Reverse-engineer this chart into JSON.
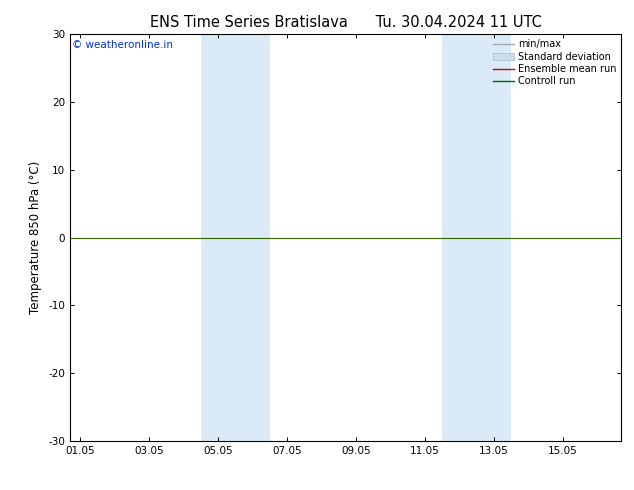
{
  "title": "ENS Time Series Bratislava      Tu. 30.04.2024 11 UTC",
  "ylabel": "Temperature 850 hPa (°C)",
  "ylim": [
    -30,
    30
  ],
  "yticks": [
    -30,
    -20,
    -10,
    0,
    10,
    20,
    30
  ],
  "xtick_labels": [
    "01.05",
    "03.05",
    "05.05",
    "07.05",
    "09.05",
    "11.05",
    "13.05",
    "15.05"
  ],
  "xtick_positions": [
    0,
    2,
    4,
    6,
    8,
    10,
    12,
    14
  ],
  "xlim": [
    -0.3,
    15.7
  ],
  "background_color": "#ffffff",
  "plot_bg_color": "#ffffff",
  "shade_bands": [
    {
      "x_start": 3.5,
      "x_end": 5.5
    },
    {
      "x_start": 10.5,
      "x_end": 12.5
    }
  ],
  "shade_color": "#daeaf7",
  "zero_line_color": "#336600",
  "zero_line_y": 0,
  "watermark": "© weatheronline.in",
  "watermark_color": "#0033cc",
  "legend_items": [
    {
      "label": "min/max",
      "color": "#aaaaaa",
      "lw": 1.0,
      "type": "line"
    },
    {
      "label": "Standard deviation",
      "color": "#ccddee",
      "lw": 6,
      "type": "patch"
    },
    {
      "label": "Ensemble mean run",
      "color": "#cc0000",
      "lw": 1.0,
      "type": "line"
    },
    {
      "label": "Controll run",
      "color": "#006600",
      "lw": 1.0,
      "type": "line"
    }
  ],
  "title_fontsize": 10.5,
  "tick_fontsize": 7.5,
  "ylabel_fontsize": 8.5,
  "watermark_fontsize": 7.5,
  "legend_fontsize": 7.0
}
